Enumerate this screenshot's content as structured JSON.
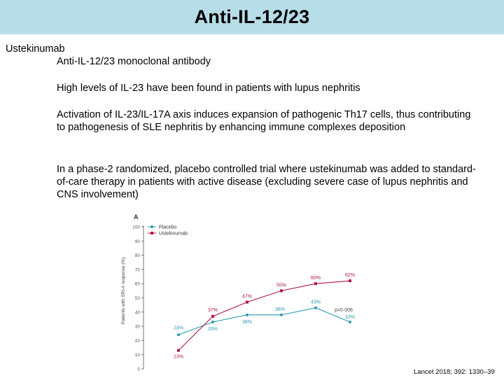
{
  "slide": {
    "title": "Anti-IL-12/23",
    "drug_name": "Ustekinumab",
    "drug_class": "Anti-IL-12/23 monoclonal antibody",
    "bullets": [
      "High levels of IL-23 have been found in patients with lupus nephritis",
      "Activation of IL-23/IL-17A axis induces expansion of pathogenic Th17 cells, thus contributing to pathogenesis of SLE nephritis by enhancing immune complexes deposition",
      "In a phase-2 randomized, placebo controlled trial where ustekinumab was added to standard-of-care therapy in patients with active disease (excluding severe case of lupus nephritis and CNS involvement)"
    ],
    "citation": "Lancet 2018; 392: 1330–39"
  },
  "colors": {
    "title_bar": "#b7dde8",
    "placebo": "#2b9bb5",
    "ustekinumab": "#b0174b"
  },
  "chart_data": {
    "type": "line",
    "panel_label": "A",
    "ylabel": "Patients with SRI-4 response (%)",
    "xlabel": "",
    "ylim": [
      0,
      100
    ],
    "yticks": [
      0,
      10,
      20,
      30,
      40,
      50,
      60,
      70,
      80,
      90,
      100
    ],
    "x": [
      1,
      2,
      3,
      4,
      5,
      6
    ],
    "series": [
      {
        "name": "Placebo",
        "values": [
          24,
          33,
          38,
          38,
          43,
          33
        ],
        "labels": [
          "24%",
          "33%",
          "38%",
          "38%",
          "43%",
          "33%"
        ]
      },
      {
        "name": "Ustekinumab",
        "values": [
          13,
          37,
          47,
          55,
          60,
          62
        ],
        "labels": [
          "13%",
          "37%",
          "47%",
          "55%",
          "60%",
          "62%"
        ]
      }
    ],
    "annotation": "p=0·006",
    "grid": false,
    "legend": "top-left"
  }
}
